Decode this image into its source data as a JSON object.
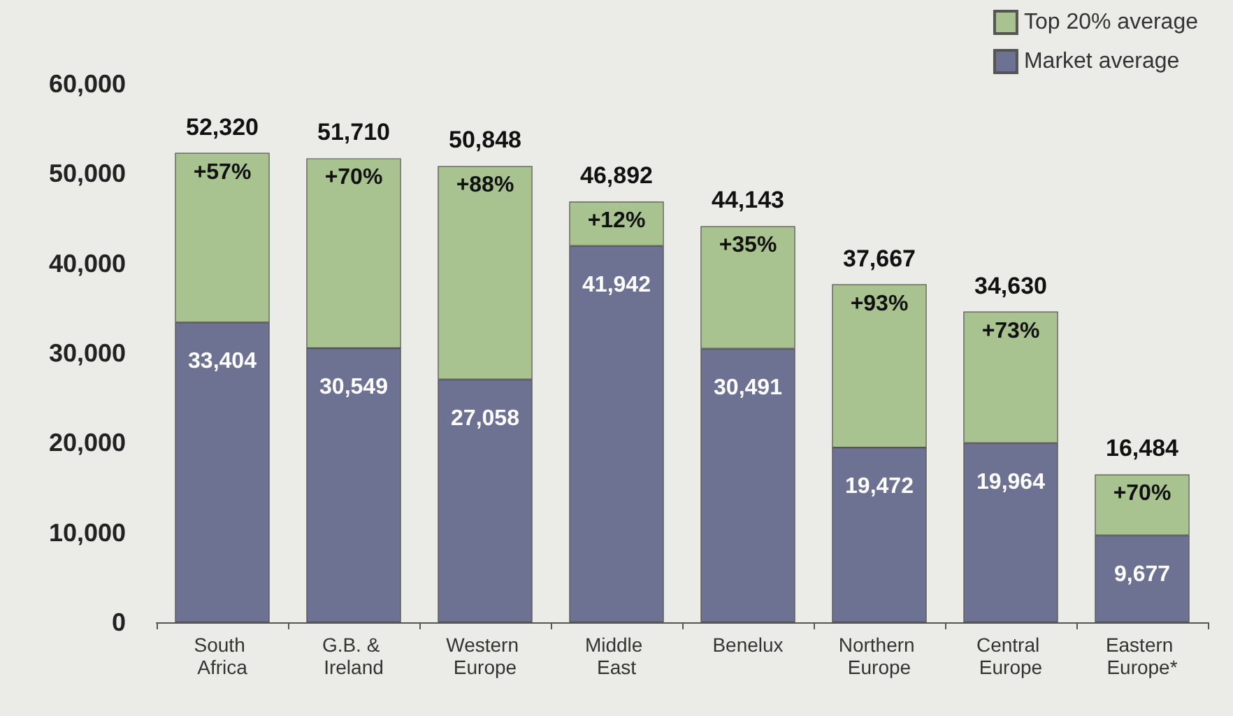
{
  "chart_data": {
    "type": "bar",
    "stacked": true,
    "categories": [
      "South Africa",
      "G.B. & Ireland",
      "Western Europe",
      "Middle East",
      "Benelux",
      "Northern Europe",
      "Central Europe",
      "Eastern Europe*"
    ],
    "series": [
      {
        "name": "Market average",
        "color": "#6d7192",
        "values": [
          33404,
          30549,
          27058,
          41942,
          30491,
          19472,
          19964,
          9677
        ],
        "value_labels": [
          "33,404",
          "30,549",
          "27,058",
          "41,942",
          "30,491",
          "19,472",
          "19,964",
          "9,677"
        ]
      },
      {
        "name": "Top 20% average",
        "color": "#a8c290",
        "values": [
          18916,
          21161,
          23790,
          4950,
          13652,
          18195,
          14666,
          6807
        ]
      }
    ],
    "totals": [
      "52,320",
      "51,710",
      "50,848",
      "46,892",
      "44,143",
      "37,667",
      "34,630",
      "16,484"
    ],
    "annotations": [
      "+57%",
      "+70%",
      "+88%",
      "+12%",
      "+35%",
      "+93%",
      "+73%",
      "+70%"
    ],
    "ylim": [
      0,
      60000
    ],
    "yticks": [
      0,
      {
        "value": 10000,
        "label": "10,000"
      },
      {
        "value": 20000,
        "label": "20,000"
      },
      {
        "value": 30000,
        "label": "30,000"
      },
      {
        "value": 40000,
        "label": "40,000"
      },
      {
        "value": 50000,
        "label": "50,000"
      },
      {
        "value": 60000,
        "label": "60,000"
      }
    ],
    "grid": false,
    "legend": "top right"
  }
}
